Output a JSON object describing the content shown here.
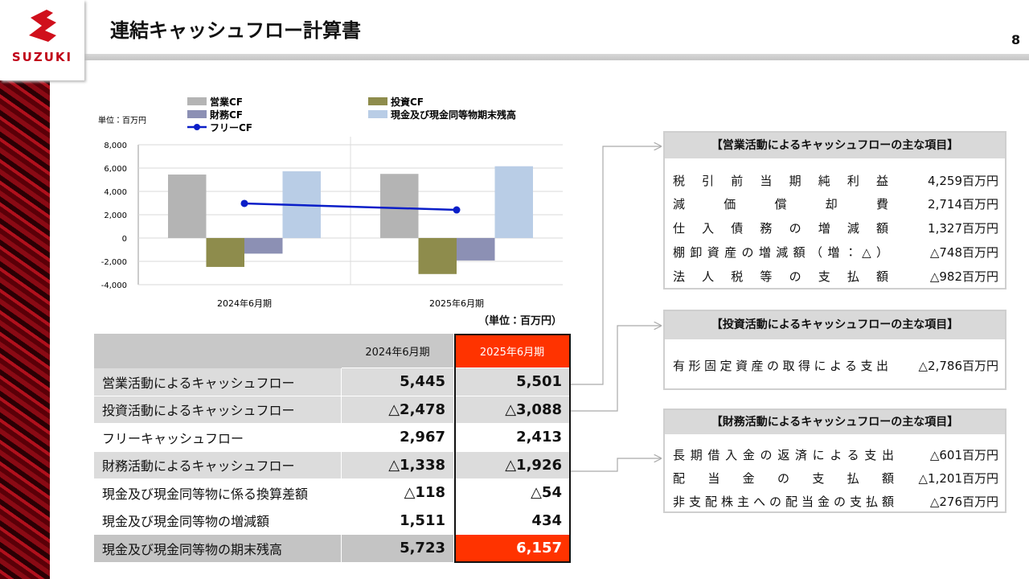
{
  "logo": "SUZUKI",
  "title": "連結キャッシュフロー計算書",
  "page_number": "8",
  "chart_data": {
    "type": "bar",
    "unit": "単位：百万円",
    "categories": [
      "2024年6月期",
      "2025年6月期"
    ],
    "series": [
      {
        "name": "営業CF",
        "color": "#b4b4b4",
        "values": [
          5445,
          5501
        ]
      },
      {
        "name": "投資CF",
        "color": "#8e8c4c",
        "values": [
          -2478,
          -3088
        ]
      },
      {
        "name": "財務CF",
        "color": "#8c90b4",
        "values": [
          -1338,
          -1926
        ]
      },
      {
        "name": "現金及び現金同等物期末残高",
        "color": "#b9cde6",
        "values": [
          5723,
          6157
        ]
      },
      {
        "name": "フリーCF",
        "type": "line",
        "color": "#0a1ec8",
        "values": [
          2967,
          2413
        ]
      }
    ],
    "ylim": [
      -4000,
      8000
    ],
    "yticks": [
      {
        "value": -4000,
        "label": "-4,000"
      },
      {
        "value": -2000,
        "label": "-2,000"
      },
      0,
      {
        "value": 2000,
        "label": "2,000"
      },
      {
        "value": 4000,
        "label": "4,000"
      },
      {
        "value": 6000,
        "label": "6,000"
      },
      {
        "value": 8000,
        "label": "8,000"
      }
    ],
    "grid": true
  },
  "table": {
    "unit": "（単位：百万円）",
    "header": [
      "2024年6月期",
      "2025年6月期"
    ],
    "rows": [
      [
        "営業活動によるキャッシュフロー",
        "5,445",
        "5,501"
      ],
      [
        "投資活動によるキャッシュフロー",
        "△2,478",
        "△3,088"
      ],
      [
        "フリーキャッシュフロー",
        "2,967",
        "2,413"
      ],
      [
        "財務活動によるキャッシュフロー",
        "△1,338",
        "△1,926"
      ],
      [
        "現金及び現金同等物に係る換算差額",
        "△118",
        "△54"
      ],
      [
        "現金及び現金同等物の増減額",
        "1,511",
        "434"
      ],
      [
        "現金及び現金同等物の期末残高",
        "5,723",
        "6,157"
      ]
    ]
  },
  "boxes": [
    {
      "title": "【営業活動によるキャッシュフローの主な項目】",
      "items": [
        [
          "税引前当期純利益",
          "4,259百万円"
        ],
        [
          "減価償却費",
          "2,714百万円"
        ],
        [
          "仕入債務の増減額",
          "1,327百万円"
        ],
        [
          "棚卸資産の増減額（増：△）",
          "△748百万円"
        ],
        [
          "法人税等の支払額",
          "△982百万円"
        ]
      ]
    },
    {
      "title": "【投資活動によるキャッシュフローの主な項目】",
      "items": [
        [
          "有形固定資産の取得による支出",
          "△2,786百万円"
        ]
      ]
    },
    {
      "title": "【財務活動によるキャッシュフローの主な項目】",
      "items": [
        [
          "長期借入金の返済による支出",
          "△601百万円"
        ],
        [
          "配当金の支払額",
          "△1,201百万円"
        ],
        [
          "非支配株主への配当金の支払額",
          "△276百万円"
        ]
      ]
    }
  ]
}
